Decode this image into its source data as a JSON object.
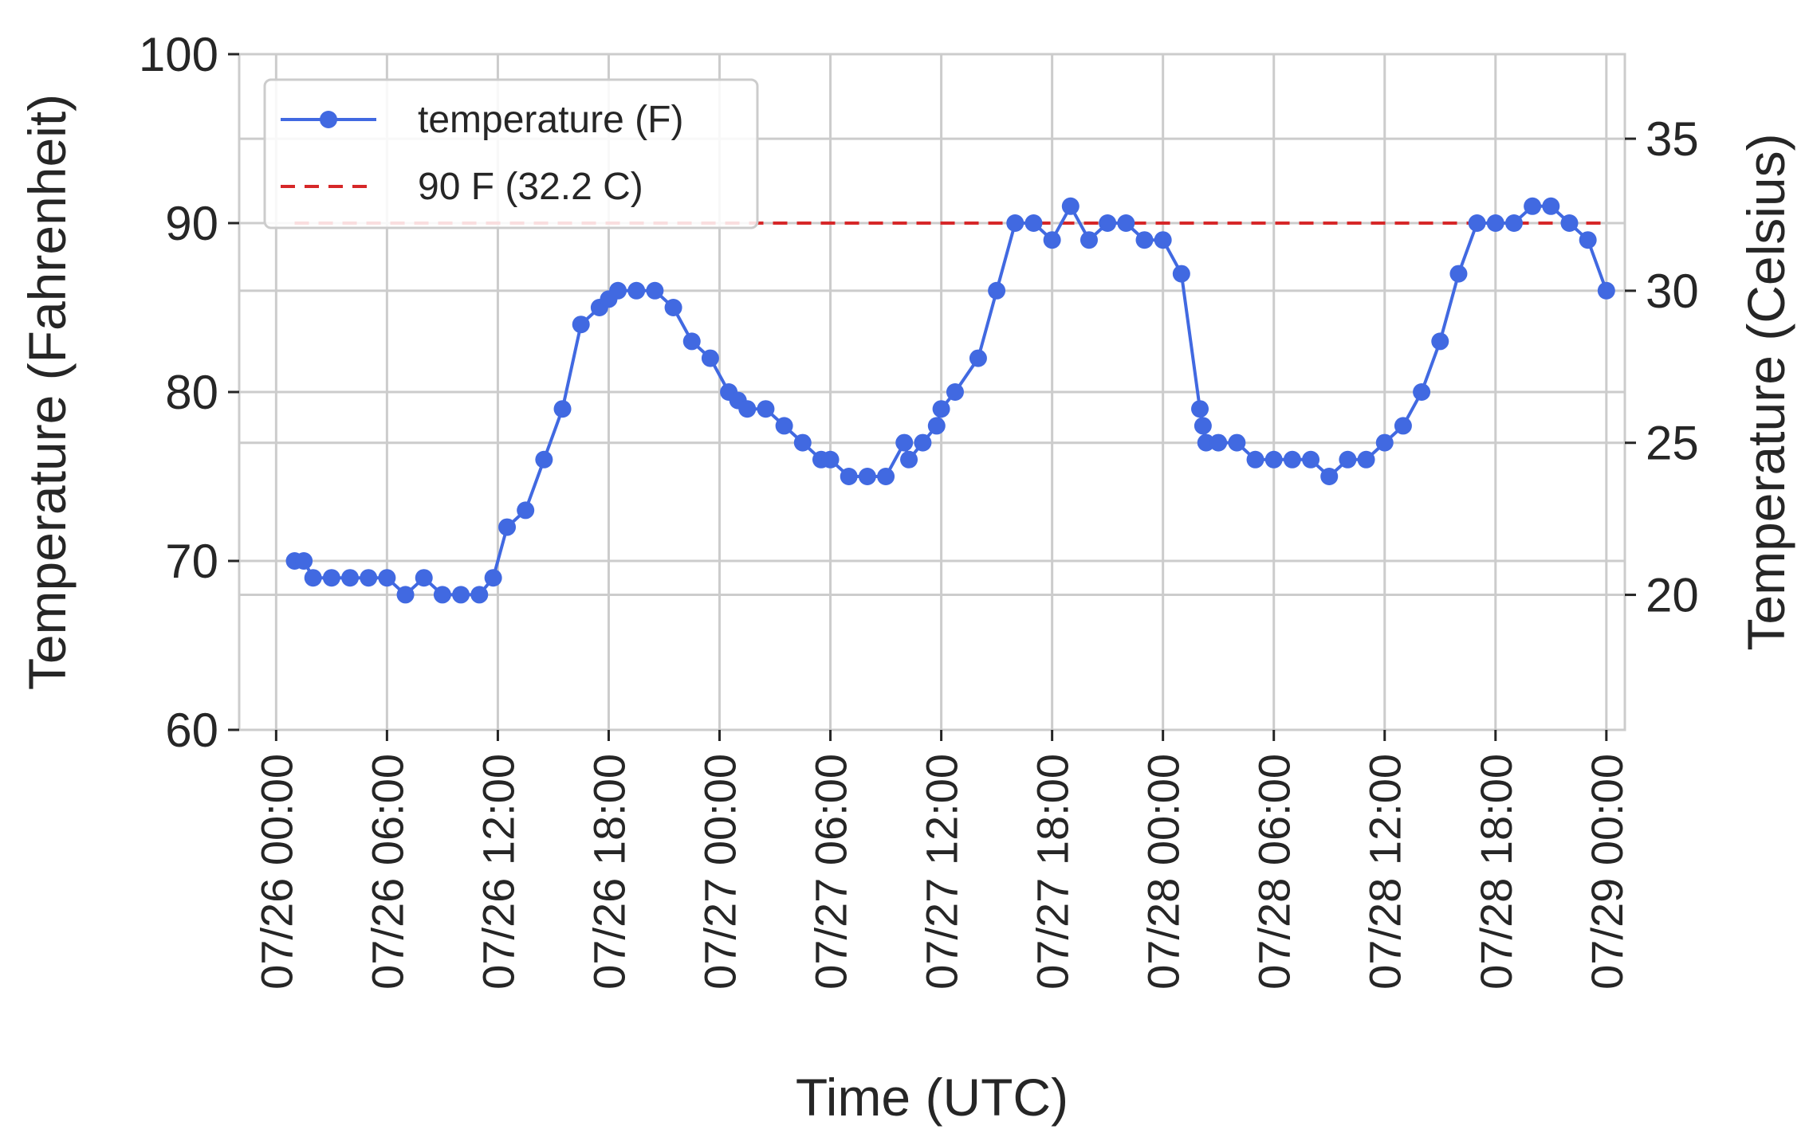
{
  "chart_data": {
    "type": "line",
    "xlabel": "Time (UTC)",
    "ylabel": "Temperature (Fahrenheit)",
    "ylabel_right": "Temperature (Celsius)",
    "ylim": [
      60,
      100
    ],
    "ylim_right_celsius": [
      15.56,
      37.78
    ],
    "yticks": [
      "60",
      "70",
      "80",
      "90",
      "100"
    ],
    "yticks_right": [
      "20",
      "25",
      "30",
      "35"
    ],
    "xlim": [
      "07/25 22:00",
      "07/29 01:00"
    ],
    "xticks": [
      "07/26 00:00",
      "07/26 06:00",
      "07/26 12:00",
      "07/26 18:00",
      "07/27 00:00",
      "07/27 06:00",
      "07/27 12:00",
      "07/27 18:00",
      "07/28 00:00",
      "07/28 06:00",
      "07/28 12:00",
      "07/28 18:00",
      "07/29 00:00"
    ],
    "grid": true,
    "legend_position": "top-left",
    "series": [
      {
        "name": "temperature (F)",
        "color": "#4169e1",
        "marker": "circle",
        "points": [
          [
            "07/26 01:00",
            70
          ],
          [
            "07/26 01:30",
            70
          ],
          [
            "07/26 02:00",
            69
          ],
          [
            "07/26 03:00",
            69
          ],
          [
            "07/26 04:00",
            69
          ],
          [
            "07/26 05:00",
            69
          ],
          [
            "07/26 06:00",
            69
          ],
          [
            "07/26 07:00",
            68
          ],
          [
            "07/26 08:00",
            69
          ],
          [
            "07/26 09:00",
            68
          ],
          [
            "07/26 10:00",
            68
          ],
          [
            "07/26 11:00",
            68
          ],
          [
            "07/26 11:45",
            69
          ],
          [
            "07/26 12:30",
            72
          ],
          [
            "07/26 13:30",
            73
          ],
          [
            "07/26 14:30",
            76
          ],
          [
            "07/26 15:30",
            79
          ],
          [
            "07/26 16:30",
            84
          ],
          [
            "07/26 17:30",
            85
          ],
          [
            "07/26 18:00",
            85.5
          ],
          [
            "07/26 18:30",
            86
          ],
          [
            "07/26 19:30",
            86
          ],
          [
            "07/26 20:30",
            86
          ],
          [
            "07/26 21:30",
            85
          ],
          [
            "07/26 22:30",
            83
          ],
          [
            "07/26 23:30",
            82
          ],
          [
            "07/27 00:30",
            80
          ],
          [
            "07/27 01:00",
            79.5
          ],
          [
            "07/27 01:30",
            79
          ],
          [
            "07/27 02:30",
            79
          ],
          [
            "07/27 03:30",
            78
          ],
          [
            "07/27 04:30",
            77
          ],
          [
            "07/27 05:30",
            76
          ],
          [
            "07/27 06:00",
            76
          ],
          [
            "07/27 07:00",
            75
          ],
          [
            "07/27 08:00",
            75
          ],
          [
            "07/27 09:00",
            75
          ],
          [
            "07/27 10:00",
            77
          ],
          [
            "07/27 10:15",
            76
          ],
          [
            "07/27 11:00",
            77
          ],
          [
            "07/27 11:45",
            78
          ],
          [
            "07/27 12:00",
            79
          ],
          [
            "07/27 12:45",
            80
          ],
          [
            "07/27 14:00",
            82
          ],
          [
            "07/27 15:00",
            86
          ],
          [
            "07/27 16:00",
            90
          ],
          [
            "07/27 17:00",
            90
          ],
          [
            "07/27 18:00",
            89
          ],
          [
            "07/27 19:00",
            91
          ],
          [
            "07/27 20:00",
            89
          ],
          [
            "07/27 21:00",
            90
          ],
          [
            "07/27 22:00",
            90
          ],
          [
            "07/27 23:00",
            89
          ],
          [
            "07/28 00:00",
            89
          ],
          [
            "07/28 01:00",
            87
          ],
          [
            "07/28 02:00",
            79
          ],
          [
            "07/28 02:10",
            78
          ],
          [
            "07/28 02:20",
            77
          ],
          [
            "07/28 03:00",
            77
          ],
          [
            "07/28 04:00",
            77
          ],
          [
            "07/28 05:00",
            76
          ],
          [
            "07/28 06:00",
            76
          ],
          [
            "07/28 07:00",
            76
          ],
          [
            "07/28 08:00",
            76
          ],
          [
            "07/28 09:00",
            75
          ],
          [
            "07/28 10:00",
            76
          ],
          [
            "07/28 11:00",
            76
          ],
          [
            "07/28 12:00",
            77
          ],
          [
            "07/28 13:00",
            78
          ],
          [
            "07/28 14:00",
            80
          ],
          [
            "07/28 15:00",
            83
          ],
          [
            "07/28 16:00",
            87
          ],
          [
            "07/28 17:00",
            90
          ],
          [
            "07/28 18:00",
            90
          ],
          [
            "07/28 19:00",
            90
          ],
          [
            "07/28 20:00",
            91
          ],
          [
            "07/28 21:00",
            91
          ],
          [
            "07/28 22:00",
            90
          ],
          [
            "07/28 23:00",
            89
          ],
          [
            "07/29 00:00",
            86
          ]
        ]
      },
      {
        "name": "90 F (32.2 C)",
        "color": "#d62728",
        "style": "dashed",
        "points": [
          [
            "07/26 01:00",
            90
          ],
          [
            "07/29 00:00",
            90
          ]
        ]
      }
    ]
  }
}
